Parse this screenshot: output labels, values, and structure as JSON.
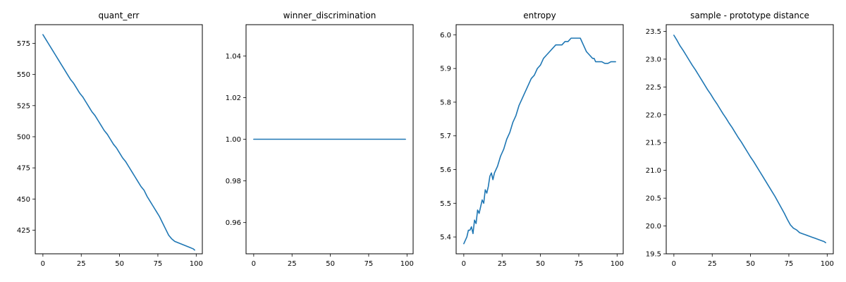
{
  "figure": {
    "line_color": "#1f77b4"
  },
  "chart_data": [
    {
      "type": "line",
      "title": "quant_err",
      "xlim": [
        -5,
        104
      ],
      "ylim": [
        406,
        590
      ],
      "xticks": [
        0,
        25,
        50,
        75,
        100
      ],
      "yticks": [
        425,
        450,
        475,
        500,
        525,
        550,
        575
      ],
      "ytick_labels": [
        "425",
        "450",
        "475",
        "500",
        "525",
        "550",
        "575"
      ],
      "series": [
        {
          "x": [
            0,
            2,
            4,
            6,
            8,
            10,
            12,
            14,
            16,
            18,
            20,
            22,
            24,
            26,
            28,
            30,
            32,
            34,
            36,
            38,
            40,
            42,
            44,
            46,
            48,
            50,
            52,
            54,
            56,
            58,
            60,
            62,
            64,
            66,
            68,
            70,
            72,
            74,
            76,
            78,
            80,
            82,
            84,
            86,
            88,
            90,
            92,
            94,
            96,
            98,
            99
          ],
          "y": [
            582,
            578,
            574,
            570,
            566,
            562,
            558,
            554,
            550,
            546,
            543,
            539,
            535,
            532,
            528,
            524,
            520,
            517,
            513,
            509,
            505,
            502,
            498,
            494,
            491,
            487,
            483,
            480,
            476,
            472,
            468,
            464,
            460,
            457,
            452,
            448,
            444,
            440,
            436,
            431,
            426,
            421,
            418,
            416,
            415,
            414,
            413,
            412,
            411,
            410,
            409
          ]
        }
      ]
    },
    {
      "type": "line",
      "title": "winner_discrimination",
      "xlim": [
        -5,
        104
      ],
      "ylim": [
        0.945,
        1.055
      ],
      "xticks": [
        0,
        25,
        50,
        75,
        100
      ],
      "yticks": [
        0.96,
        0.98,
        1.0,
        1.02,
        1.04
      ],
      "ytick_labels": [
        "0.96",
        "0.98",
        "1.00",
        "1.02",
        "1.04"
      ],
      "series": [
        {
          "x": [
            0,
            99
          ],
          "y": [
            1.0,
            1.0
          ]
        }
      ]
    },
    {
      "type": "line",
      "title": "entropy",
      "xlim": [
        -5,
        104
      ],
      "ylim": [
        5.35,
        6.03
      ],
      "xticks": [
        0,
        25,
        50,
        75,
        100
      ],
      "yticks": [
        5.4,
        5.5,
        5.6,
        5.7,
        5.8,
        5.9,
        6.0
      ],
      "ytick_labels": [
        "5.4",
        "5.5",
        "5.6",
        "5.7",
        "5.8",
        "5.9",
        "6.0"
      ],
      "series": [
        {
          "x": [
            0,
            2,
            3,
            4,
            5,
            6,
            7,
            8,
            9,
            10,
            11,
            12,
            13,
            14,
            15,
            16,
            17,
            18,
            19,
            20,
            22,
            24,
            26,
            28,
            30,
            32,
            34,
            36,
            38,
            40,
            42,
            44,
            46,
            48,
            50,
            52,
            54,
            56,
            58,
            60,
            62,
            64,
            66,
            68,
            70,
            72,
            74,
            76,
            78,
            80,
            82,
            84,
            85,
            86,
            88,
            90,
            92,
            94,
            96,
            98,
            99
          ],
          "y": [
            5.38,
            5.4,
            5.42,
            5.42,
            5.43,
            5.41,
            5.45,
            5.44,
            5.48,
            5.47,
            5.49,
            5.51,
            5.5,
            5.54,
            5.53,
            5.55,
            5.58,
            5.59,
            5.57,
            5.59,
            5.61,
            5.64,
            5.66,
            5.69,
            5.71,
            5.74,
            5.76,
            5.79,
            5.81,
            5.83,
            5.85,
            5.87,
            5.88,
            5.9,
            5.91,
            5.93,
            5.94,
            5.95,
            5.96,
            5.97,
            5.97,
            5.97,
            5.98,
            5.98,
            5.99,
            5.99,
            5.99,
            5.99,
            5.97,
            5.95,
            5.94,
            5.93,
            5.93,
            5.92,
            5.92,
            5.92,
            5.915,
            5.915,
            5.92,
            5.92,
            5.92
          ]
        }
      ]
    },
    {
      "type": "line",
      "title": "sample - prototype distance",
      "xlim": [
        -5,
        104
      ],
      "ylim": [
        19.5,
        23.62
      ],
      "xticks": [
        0,
        25,
        50,
        75,
        100
      ],
      "yticks": [
        19.5,
        20.0,
        20.5,
        21.0,
        21.5,
        22.0,
        22.5,
        23.0,
        23.5
      ],
      "ytick_labels": [
        "19.5",
        "20.0",
        "20.5",
        "21.0",
        "21.5",
        "22.0",
        "22.5",
        "23.0",
        "23.5"
      ],
      "series": [
        {
          "x": [
            0,
            2,
            4,
            6,
            8,
            10,
            12,
            14,
            16,
            18,
            20,
            22,
            24,
            26,
            28,
            30,
            32,
            34,
            36,
            38,
            40,
            42,
            44,
            46,
            48,
            50,
            52,
            54,
            56,
            58,
            60,
            62,
            64,
            66,
            68,
            70,
            72,
            74,
            76,
            78,
            80,
            82,
            84,
            86,
            88,
            90,
            92,
            94,
            96,
            98,
            99
          ],
          "y": [
            23.43,
            23.34,
            23.24,
            23.16,
            23.07,
            22.98,
            22.89,
            22.81,
            22.72,
            22.63,
            22.54,
            22.45,
            22.37,
            22.28,
            22.2,
            22.11,
            22.02,
            21.94,
            21.85,
            21.77,
            21.68,
            21.59,
            21.51,
            21.42,
            21.33,
            21.24,
            21.16,
            21.07,
            20.98,
            20.89,
            20.8,
            20.71,
            20.62,
            20.53,
            20.43,
            20.33,
            20.23,
            20.12,
            20.02,
            19.96,
            19.93,
            19.88,
            19.86,
            19.84,
            19.82,
            19.8,
            19.78,
            19.76,
            19.74,
            19.72,
            19.7
          ]
        }
      ]
    }
  ]
}
